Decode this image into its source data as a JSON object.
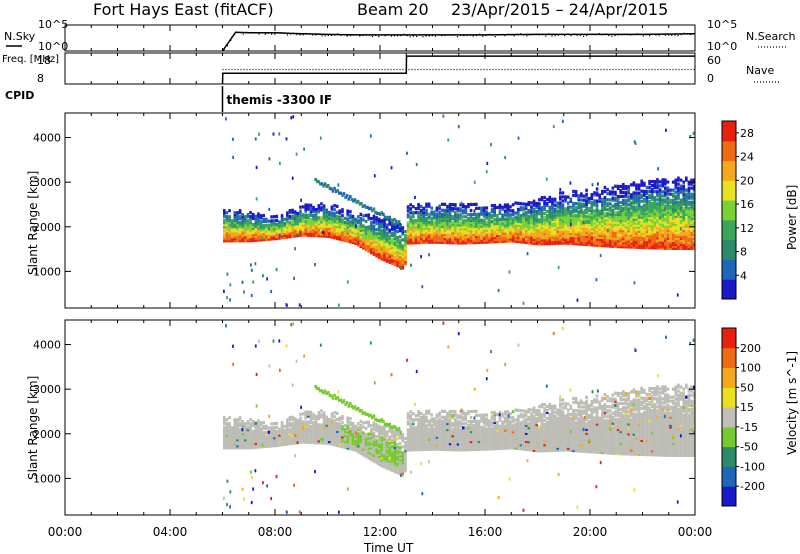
{
  "header": {
    "station": "Fort Hays East (fitACF)",
    "beam": "Beam 20",
    "date_range": "23/Apr/2015 – 24/Apr/2015"
  },
  "colors": {
    "noise_sky": "#000000",
    "frequency": "#000000",
    "power_scale": [
      "#1a18c8",
      "#1e66b8",
      "#2b8a6a",
      "#3aa65a",
      "#7ad135",
      "#e8e020",
      "#f4a81c",
      "#f06a14",
      "#e8210f"
    ],
    "velocity_scale": [
      "#1a18c8",
      "#1e66b8",
      "#2b8a6a",
      "#76c92e",
      "#c0c0b8",
      "#e8e020",
      "#f4a81c",
      "#f06a14",
      "#e8210f"
    ],
    "ground_scatter": "#bdbdb6"
  },
  "chart_data": [
    {
      "type": "line",
      "name": "noise_panel",
      "ylabel": "N.Sky",
      "right_label": "N.Search",
      "left_ticks": [
        "10^5",
        "10^0"
      ],
      "right_ticks": [
        "10^5",
        "10^0"
      ],
      "x_hours": [
        6.0,
        6.5,
        7,
        8,
        9,
        10,
        11,
        12,
        13,
        14,
        16,
        18,
        20,
        22,
        24
      ],
      "y_log10": [
        0.0,
        3.6,
        3.5,
        3.5,
        3.3,
        3.2,
        3.1,
        3.1,
        3.1,
        3.1,
        3.1,
        3.2,
        3.2,
        3.2,
        3.3
      ],
      "ylim_log10": [
        0,
        5
      ]
    },
    {
      "type": "line",
      "name": "frequency_panel",
      "ylabel": "Freq. [MHz]",
      "right_label": "Nave",
      "left_ticks": [
        "18",
        "8"
      ],
      "right_ticks": [
        "60",
        "0"
      ],
      "x_hours": [
        6.0,
        6.01,
        13.0,
        13.01,
        24.0
      ],
      "freq_mhz": [
        8,
        11.5,
        11.5,
        17.0,
        17.0
      ],
      "ylim_mhz": [
        8,
        18
      ],
      "nave_x_hours": [
        6.0,
        13.0,
        24.0
      ],
      "nave": [
        28,
        28,
        28
      ]
    },
    {
      "type": "text",
      "name": "cpid_panel",
      "label": "CPID",
      "start_hour": 6.0,
      "program": "themis -3300 IF"
    },
    {
      "type": "heatmap",
      "name": "power_panel",
      "ylabel": "Slant Range [km]",
      "yticks": [
        1000,
        2000,
        3000,
        4000
      ],
      "ylim": [
        180,
        4550
      ],
      "colorbar_label": "Power [dB]",
      "colorbar_ticks": [
        4,
        8,
        12,
        16,
        20,
        24,
        28
      ],
      "colorbar_range": [
        0,
        30
      ],
      "scatter_band": {
        "x_hours": [
          6.0,
          7,
          8,
          9,
          10,
          11,
          12,
          12.9,
          13.0,
          14,
          15,
          16,
          17,
          18,
          19,
          20,
          21,
          22,
          23,
          24
        ],
        "lower_edge_km": [
          1650,
          1650,
          1700,
          1780,
          1750,
          1600,
          1250,
          1020,
          1600,
          1620,
          1600,
          1620,
          1650,
          1580,
          1600,
          1560,
          1520,
          1500,
          1480,
          1480
        ],
        "upper_edge_km": [
          2400,
          2300,
          2200,
          2450,
          2500,
          2300,
          2200,
          2000,
          2500,
          2500,
          2500,
          2450,
          2500,
          2600,
          2750,
          2800,
          2900,
          3000,
          3100,
          3050
        ]
      }
    },
    {
      "type": "heatmap",
      "name": "velocity_panel",
      "ylabel": "Slant Range [km]",
      "yticks": [
        1000,
        2000,
        3000,
        4000
      ],
      "ylim": [
        180,
        4550
      ],
      "colorbar_label": "Velocity [m s^-1]",
      "colorbar_ticks": [
        200,
        100,
        50,
        15,
        -15,
        -50,
        -100,
        -200
      ],
      "colorbar_range": [
        -250,
        250
      ]
    }
  ],
  "x_axis": {
    "label": "Time UT",
    "range_hours": [
      0,
      24
    ],
    "ticks": [
      "00:00",
      "04:00",
      "08:00",
      "12:00",
      "16:00",
      "20:00",
      "00:00"
    ]
  }
}
